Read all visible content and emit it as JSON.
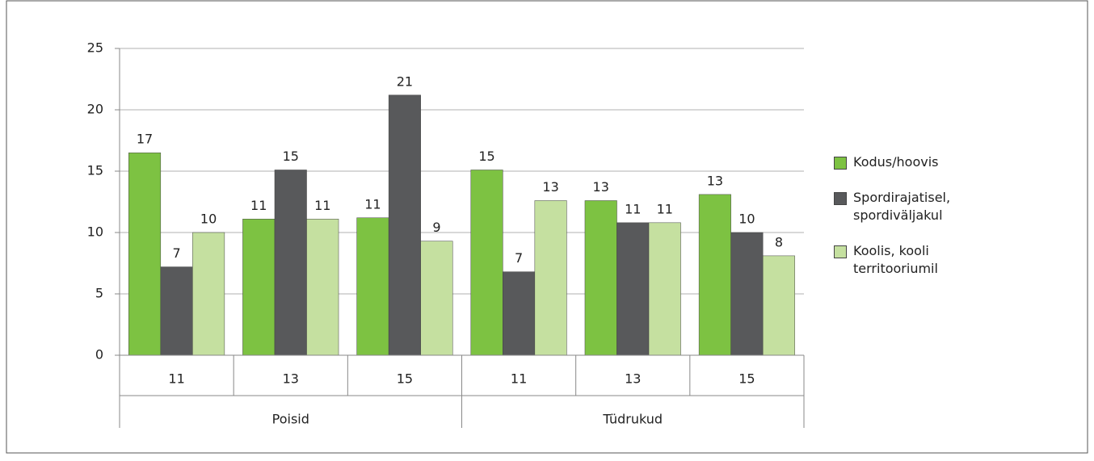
{
  "chart_data": {
    "type": "bar",
    "groups": [
      {
        "name": "Poisid",
        "categories": [
          "11",
          "13",
          "15"
        ]
      },
      {
        "name": "Tüdrukud",
        "categories": [
          "11",
          "13",
          "15"
        ]
      }
    ],
    "series": [
      {
        "name": "Kodus/hoovis",
        "color": "#7dc242",
        "values": [
          16.5,
          11.1,
          11.2,
          15.1,
          12.6,
          13.1
        ],
        "value_labels": [
          "17",
          "11",
          "11",
          "15",
          "13",
          "13"
        ]
      },
      {
        "name": "Spordirajatisel, spordiväljakul",
        "color": "#58595b",
        "values": [
          7.2,
          15.1,
          21.2,
          6.8,
          10.8,
          10.0
        ],
        "value_labels": [
          "7",
          "15",
          "21",
          "7",
          "11",
          "10"
        ]
      },
      {
        "name": "Koolis, kooli territooriumil",
        "color": "#c5e0a0",
        "values": [
          10.0,
          11.1,
          9.3,
          12.6,
          10.8,
          8.1
        ],
        "value_labels": [
          "10",
          "11",
          "9",
          "13",
          "11",
          "8"
        ]
      }
    ],
    "ylim": [
      0,
      25
    ],
    "yticks": [
      0,
      5,
      10,
      15,
      20,
      25
    ],
    "grid": true,
    "legend": "right"
  }
}
